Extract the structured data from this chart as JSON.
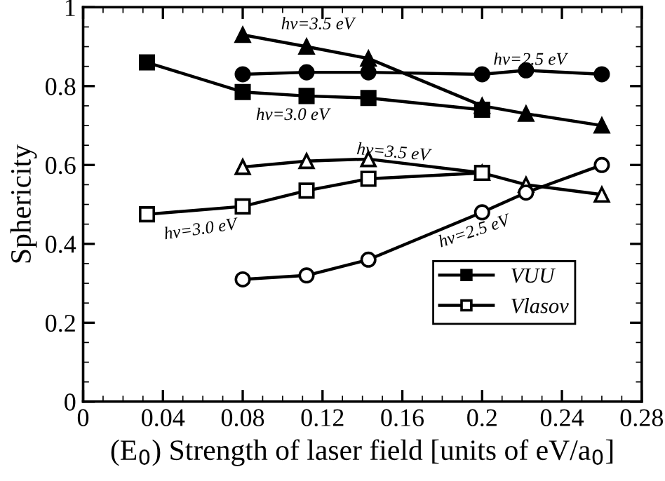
{
  "chart_data": {
    "type": "line",
    "xlabel": "(E$_{0}$) Strength of laser field [units of eV/a$_{0}$]",
    "ylabel": "Sphericity",
    "xlim": [
      0,
      0.28
    ],
    "xticks": [
      0,
      0.04,
      0.08,
      0.12,
      0.16,
      0.2,
      0.24,
      0.28
    ],
    "ylim": [
      0,
      1
    ],
    "yticks": [
      0,
      0.2,
      0.4,
      0.6,
      0.8,
      1
    ],
    "grid": false,
    "legend": "bottom right",
    "line_style": "solid",
    "series": [
      {
        "x": [
          0.08,
          0.112,
          0.143,
          0.2,
          0.222,
          0.26
        ],
        "values": [
          0.93,
          0.9,
          0.87,
          0.75,
          0.73,
          0.7
        ],
        "color": "#000000",
        "marker": "triangle"
      },
      {
        "x": [
          0.08,
          0.112,
          0.143,
          0.2,
          0.222,
          0.26
        ],
        "values": [
          0.83,
          0.835,
          0.835,
          0.83,
          0.84,
          0.83
        ],
        "color": "#000000",
        "marker": "circle"
      },
      {
        "name": "VUU",
        "x": [
          0.032,
          0.08,
          0.112,
          0.143,
          0.2
        ],
        "values": [
          0.86,
          0.785,
          0.775,
          0.77,
          0.74
        ],
        "color": "#000000",
        "marker": "square"
      },
      {
        "x": [
          0.08,
          0.112,
          0.143,
          0.2,
          0.222,
          0.26
        ],
        "values": [
          0.595,
          0.61,
          0.615,
          0.58,
          0.55,
          0.525
        ],
        "color": "#000000",
        "marker": "triangle"
      },
      {
        "name": "Vlasov",
        "x": [
          0.032,
          0.08,
          0.112,
          0.143,
          0.2
        ],
        "values": [
          0.475,
          0.495,
          0.535,
          0.565,
          0.58
        ],
        "color": "#000000",
        "marker": "square"
      },
      {
        "x": [
          0.08,
          0.112,
          0.143,
          0.2,
          0.222,
          0.26
        ],
        "values": [
          0.31,
          0.32,
          0.36,
          0.48,
          0.53,
          0.6
        ],
        "color": "#000000",
        "marker": "circle"
      }
    ],
    "annotations": [
      "hν=3.5 eV",
      "hν=2.5 eV",
      "hν=3.0 eV",
      "hν=3.5 eV",
      "hν=3.0 eV",
      "hν=2.5 eV"
    ]
  }
}
